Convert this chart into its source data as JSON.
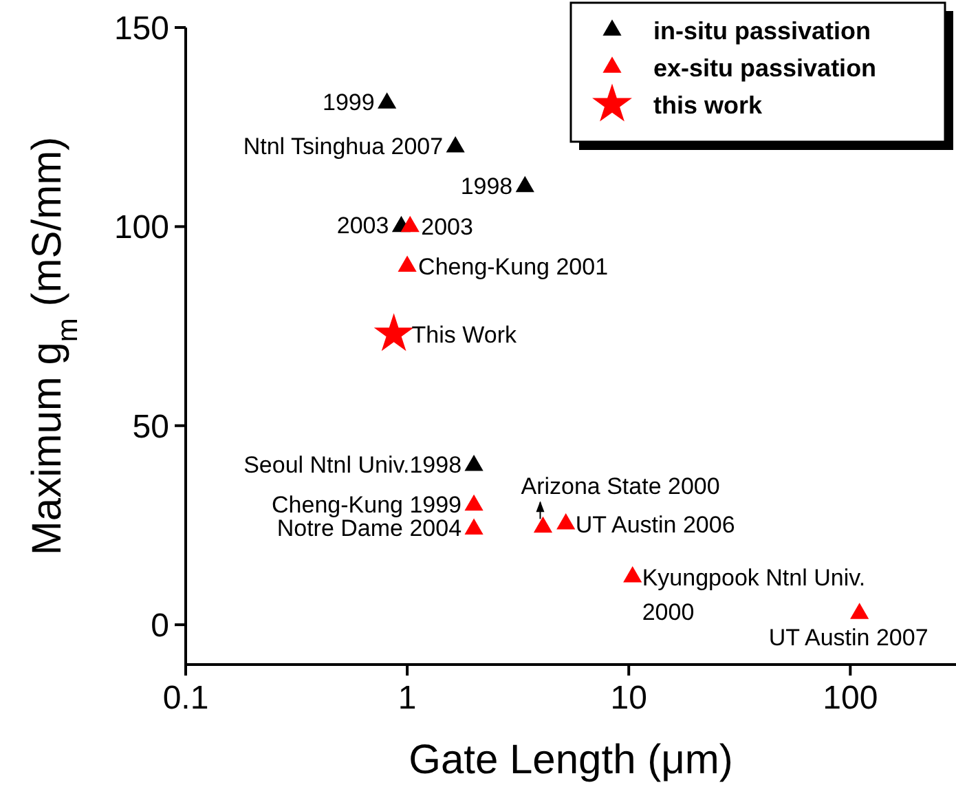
{
  "chart_data": {
    "type": "scatter",
    "xlabel": "Gate Length (μm)",
    "ylabel": "Maximum g$_{m}$ (mS/mm)",
    "log": "x",
    "xlim": [
      0.1,
      300
    ],
    "xticks": [
      0.1,
      1,
      10,
      100
    ],
    "ylim": [
      -10,
      150
    ],
    "yticks": [
      0,
      50,
      100,
      150
    ],
    "grid": false,
    "legend": "top right",
    "series": [
      {
        "name": "in-situ passivation",
        "color": "#000000",
        "marker": "triangle",
        "x": [
          0.81,
          1.65,
          3.4,
          0.94,
          2
        ],
        "values": [
          131,
          120,
          110,
          100,
          40
        ]
      },
      {
        "name": "ex-situ passivation",
        "color": "#ff0000",
        "marker": "triangle",
        "x": [
          1.03,
          1.0,
          2,
          2,
          4.1,
          5.2,
          10.4,
          110
        ],
        "values": [
          100,
          90,
          30,
          24,
          24.5,
          25.3,
          12,
          2.8
        ]
      },
      {
        "name": "this work",
        "color": "#ff0000",
        "marker": "star",
        "x": [
          0.87
        ],
        "values": [
          73
        ]
      }
    ],
    "annotations": [
      {
        "text": "1999",
        "x": 0.81,
        "y": 131
      },
      {
        "text": "Ntnl Tsinghua 2007",
        "x": 1.65,
        "y": 120
      },
      {
        "text": "1998",
        "x": 3.4,
        "y": 110
      },
      {
        "text": "2003",
        "x": 0.94,
        "y": 100
      },
      {
        "text": "2003",
        "x": 1.03,
        "y": 100
      },
      {
        "text": "Cheng-Kung 2001",
        "x": 1.0,
        "y": 90
      },
      {
        "text": "This Work",
        "x": 0.87,
        "y": 73
      },
      {
        "text": "Seoul Ntnl Univ.1998",
        "x": 2,
        "y": 40
      },
      {
        "text": "Cheng-Kung 1999",
        "x": 2,
        "y": 30
      },
      {
        "text": "Notre Dame 2004",
        "x": 2,
        "y": 24
      },
      {
        "text": "Arizona State 2000",
        "x": 4.1,
        "y": 24.5
      },
      {
        "text": "UT Austin 2006",
        "x": 5.2,
        "y": 25.3
      },
      {
        "text": "Kyungpook Ntnl Univ.\n2000",
        "x": 10.4,
        "y": 12
      },
      {
        "text": "UT Austin 2007",
        "x": 110,
        "y": 2.8
      }
    ]
  }
}
